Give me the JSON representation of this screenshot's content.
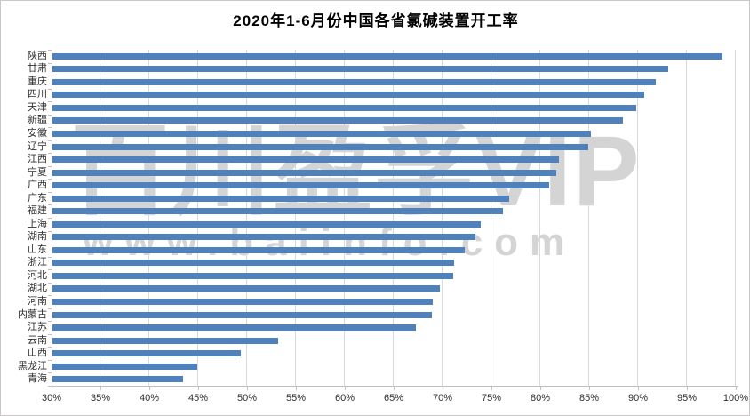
{
  "title": "2020年1-6月份中国各省氯碱装置开工率",
  "watermark": {
    "line1": "百川盈孚VIP",
    "line2": "www.baiinfo.com"
  },
  "axis": {
    "x_ticks": [
      "30%",
      "35%",
      "40%",
      "45%",
      "50%",
      "55%",
      "60%",
      "65%",
      "70%",
      "75%",
      "80%",
      "85%",
      "90%",
      "95%",
      "100%"
    ]
  },
  "chart_data": {
    "type": "bar",
    "orientation": "horizontal",
    "title": "2020年1-6月份中国各省氯碱装置开工率",
    "categories": [
      "陕西",
      "甘肃",
      "重庆",
      "四川",
      "天津",
      "新疆",
      "安徽",
      "辽宁",
      "江西",
      "宁夏",
      "广西",
      "广东",
      "福建",
      "上海",
      "湖南",
      "山东",
      "浙江",
      "河北",
      "湖北",
      "河南",
      "内蒙古",
      "江苏",
      "云南",
      "山西",
      "黑龙江",
      "青海"
    ],
    "values": [
      98.5,
      93.0,
      91.7,
      90.5,
      89.7,
      88.4,
      85.1,
      84.8,
      81.8,
      81.5,
      80.8,
      76.7,
      76.1,
      73.8,
      73.3,
      72.2,
      71.1,
      71.0,
      69.6,
      68.9,
      68.8,
      67.2,
      53.1,
      49.3,
      44.8,
      43.4
    ],
    "unit": "%",
    "xlabel": "",
    "ylabel": "",
    "xlim": [
      30,
      100
    ],
    "x_tick_step": 5,
    "grid": true,
    "legend_position": "none"
  },
  "colors": {
    "bar": "#4f81bd",
    "gridline": "#d9d9d9",
    "axis_line": "#bfbfbf",
    "watermark": "#d4d4d4",
    "label": "#2e2e2e"
  }
}
